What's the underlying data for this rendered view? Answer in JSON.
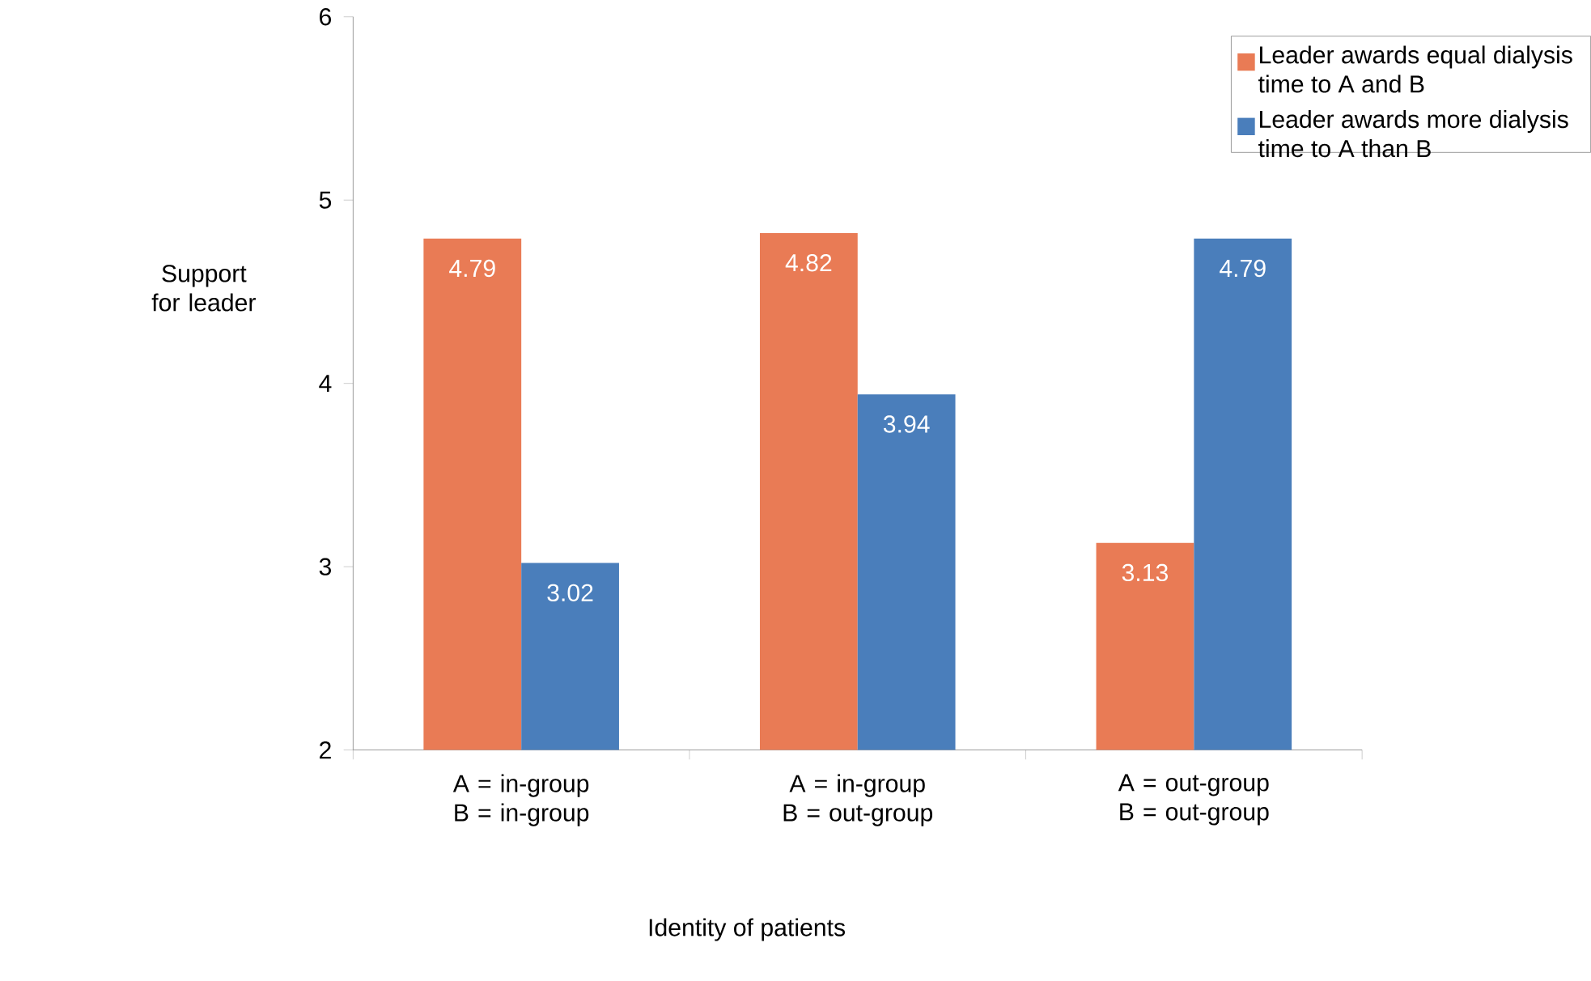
{
  "chart_data": {
    "type": "bar",
    "categories": [
      "A = in-group B = in-group",
      "A = in-group B = out-group",
      "A = out-group B = out-group"
    ],
    "series": [
      {
        "name": "Leader awards equal dialysis time to A and B",
        "color": "#e97b55",
        "values": [
          4.79,
          4.82,
          3.13
        ]
      },
      {
        "name": "Leader awards more dialysis time to A than B",
        "color": "#4a7ebb",
        "values": [
          3.02,
          3.94,
          4.79
        ]
      }
    ],
    "xlabel": "Identity of patients",
    "ylabel": "Support for leader",
    "ylim": [
      2,
      6
    ],
    "yticks": [
      2,
      3,
      4,
      5,
      6
    ],
    "data_labels": true,
    "grid": false,
    "legend": "top right"
  }
}
